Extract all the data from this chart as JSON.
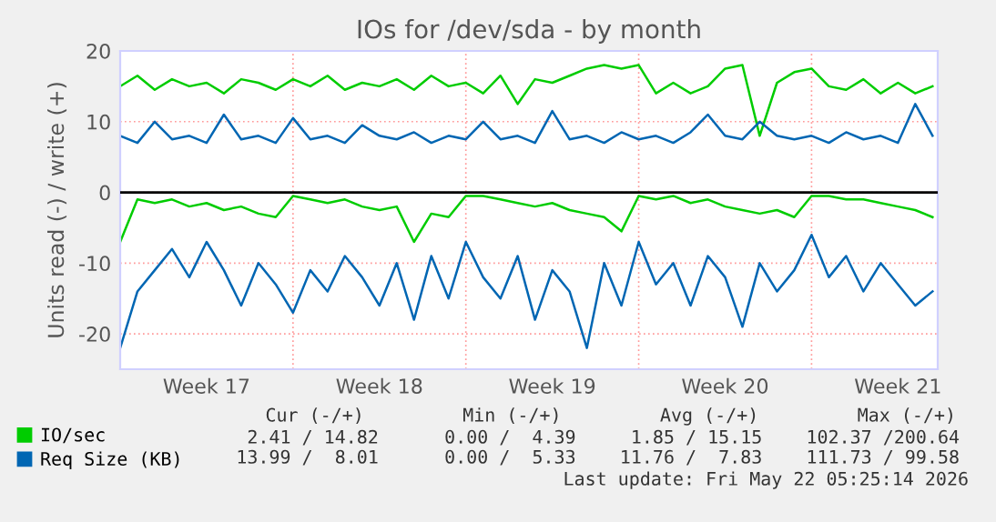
{
  "chart_data": {
    "type": "line",
    "title": "IOs for /dev/sda - by month",
    "ylabel": "Units read (-) / write (+)",
    "categories": [
      null,
      null,
      null,
      null,
      null,
      "Week 17",
      null,
      null,
      null,
      null,
      null,
      null,
      null,
      null,
      null,
      "Week 18",
      null,
      null,
      null,
      null,
      null,
      null,
      null,
      null,
      null,
      "Week 19",
      null,
      null,
      null,
      null,
      null,
      null,
      null,
      null,
      null,
      "Week 20",
      null,
      null,
      null,
      null,
      null,
      null,
      null,
      null,
      null,
      "Week 21",
      null,
      null
    ],
    "series": [
      {
        "name": "IO/sec",
        "color": "#00cc00",
        "values": [
          15,
          16.5,
          14.5,
          16,
          15,
          15.5,
          14,
          16,
          15.5,
          14.5,
          16,
          15,
          16.5,
          14.5,
          15.5,
          15,
          16,
          14.5,
          16.5,
          15,
          15.5,
          14,
          16.5,
          12.5,
          16,
          15.5,
          16.5,
          17.5,
          18,
          17.5,
          18,
          14,
          15.5,
          14,
          15,
          17.5,
          18,
          8,
          15.5,
          17,
          17.5,
          15,
          14.5,
          16,
          14,
          15.5,
          14,
          15
        ]
      },
      {
        "name": "Req Size (KB)",
        "color": "#0066b3",
        "values": [
          8,
          7,
          10,
          7.5,
          8,
          7,
          11,
          7.5,
          8,
          7,
          10.5,
          7.5,
          8,
          7,
          9.5,
          8,
          7.5,
          8.5,
          7,
          8,
          7.5,
          10,
          7.5,
          8,
          7,
          11.5,
          7.5,
          8,
          7,
          8.5,
          7.5,
          8,
          7,
          8.5,
          11,
          8,
          7.5,
          10,
          8,
          7.5,
          8,
          7,
          8.5,
          7.5,
          8,
          7,
          12.5,
          8
        ]
      },
      {
        "color": "#00cc00",
        "values": [
          -7,
          -1,
          -1.5,
          -1,
          -2,
          -1.5,
          -2.5,
          -2,
          -3,
          -3.5,
          -0.5,
          -1,
          -1.5,
          -1,
          -2,
          -2.5,
          -2,
          -7,
          -3,
          -3.5,
          -0.5,
          -0.5,
          -1,
          -1.5,
          -2,
          -1.5,
          -2.5,
          -3,
          -3.5,
          -5.5,
          -0.5,
          -1,
          -0.5,
          -1.5,
          -1,
          -2,
          -2.5,
          -3,
          -2.5,
          -3.5,
          -0.5,
          -0.5,
          -1,
          -1,
          -1.5,
          -2,
          -2.5,
          -3.5
        ]
      },
      {
        "color": "#0066b3",
        "values": [
          -22,
          -14,
          -11,
          -8,
          -12,
          -7,
          -11,
          -16,
          -10,
          -13,
          -17,
          -11,
          -14,
          -9,
          -12,
          -16,
          -10,
          -18,
          -9,
          -15,
          -7,
          -12,
          -15,
          -9,
          -18,
          -11,
          -14,
          -22,
          -10,
          -16,
          -7,
          -13,
          -10,
          -16,
          -9,
          -12,
          -19,
          -10,
          -14,
          -11,
          -6,
          -12,
          -9,
          -14,
          -10,
          -13,
          -16,
          -14
        ]
      }
    ],
    "ylim": [
      -25,
      20
    ],
    "yticks": [
      -20,
      -10,
      0,
      10,
      20
    ],
    "ref_lines": [
      {
        "axis": "y",
        "value": 0,
        "color": "#000000"
      }
    ],
    "grid": true,
    "legend": "bottom left",
    "annotations": [
      "Cur (-/+)         Min (-/+)         Avg (-/+)         Max (-/+)",
      "2.41 / 14.82      0.00 /  4.39     1.85 / 15.15    102.37 /200.64",
      "13.99 /  8.01      0.00 /  5.33    11.76 /  7.83    111.73 / 99.58",
      "Last update: Fri May 22 05:25:14 2026"
    ]
  }
}
